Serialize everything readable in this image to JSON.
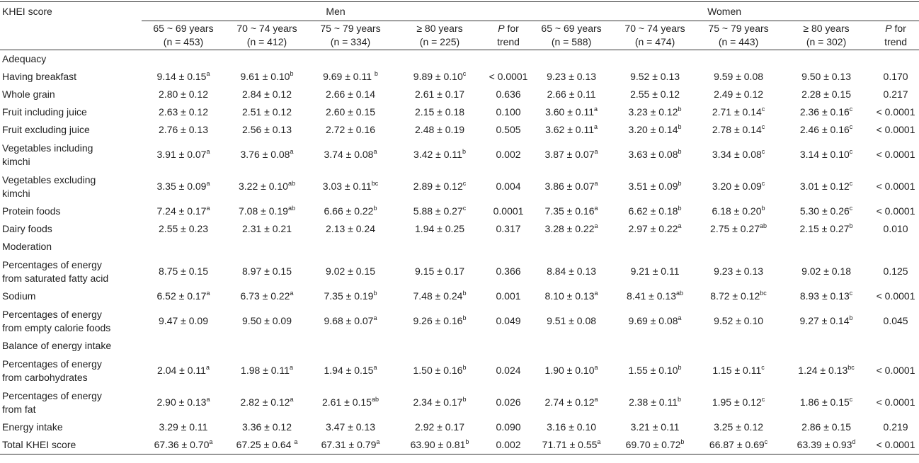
{
  "header": {
    "row_label": "KHEI score",
    "group_men": "Men",
    "group_women": "Women",
    "men_cols": [
      {
        "line1": "65 ~ 69 years",
        "line2": "(n = 453)"
      },
      {
        "line1": "70 ~ 74 years",
        "line2": "(n = 412)"
      },
      {
        "line1": "75 ~ 79 years",
        "line2": "(n = 334)"
      },
      {
        "line1": "≥ 80 years",
        "line2": "(n = 225)"
      }
    ],
    "women_cols": [
      {
        "line1": "65 ~ 69 years",
        "line2": "(n = 588)"
      },
      {
        "line1": "70 ~ 74 years",
        "line2": "(n = 474)"
      },
      {
        "line1": "75 ~ 79 years",
        "line2": "(n = 443)"
      },
      {
        "line1": "≥ 80 years",
        "line2": "(n = 302)"
      }
    ],
    "ptrend_p": "P",
    "ptrend_for": " for",
    "ptrend_trend": "trend"
  },
  "rows": [
    {
      "type": "section",
      "label": "Adequacy"
    },
    {
      "type": "data",
      "label": "Having breakfast",
      "cells": [
        {
          "v": "9.14 ± 0.15",
          "s": "a"
        },
        {
          "v": "9.61 ± 0.10",
          "s": "b"
        },
        {
          "v": "9.69 ± 0.11 ",
          "s": "b"
        },
        {
          "v": "9.89 ± 0.10",
          "s": "c"
        },
        {
          "v": "< 0.0001",
          "s": ""
        },
        {
          "v": "9.23 ± 0.13",
          "s": ""
        },
        {
          "v": "9.52 ± 0.13",
          "s": ""
        },
        {
          "v": "9.59 ± 0.08",
          "s": ""
        },
        {
          "v": "9.50 ± 0.13",
          "s": ""
        },
        {
          "v": "0.170",
          "s": ""
        }
      ]
    },
    {
      "type": "data",
      "label": "Whole grain",
      "cells": [
        {
          "v": "2.80 ± 0.12",
          "s": ""
        },
        {
          "v": "2.84 ± 0.12",
          "s": ""
        },
        {
          "v": "2.66 ± 0.14",
          "s": ""
        },
        {
          "v": "2.61 ± 0.17",
          "s": ""
        },
        {
          "v": "0.636",
          "s": ""
        },
        {
          "v": "2.66 ± 0.11",
          "s": ""
        },
        {
          "v": "2.55 ± 0.12",
          "s": ""
        },
        {
          "v": "2.49 ± 0.12",
          "s": ""
        },
        {
          "v": "2.28 ± 0.15",
          "s": ""
        },
        {
          "v": "0.217",
          "s": ""
        }
      ]
    },
    {
      "type": "data",
      "label": "Fruit including juice",
      "cells": [
        {
          "v": "2.63 ± 0.12",
          "s": ""
        },
        {
          "v": "2.51 ± 0.12",
          "s": ""
        },
        {
          "v": "2.60 ± 0.15",
          "s": ""
        },
        {
          "v": "2.15 ± 0.18",
          "s": ""
        },
        {
          "v": "0.100",
          "s": ""
        },
        {
          "v": "3.60 ± 0.11",
          "s": "a"
        },
        {
          "v": "3.23 ± 0.12",
          "s": "b"
        },
        {
          "v": "2.71 ± 0.14",
          "s": "c"
        },
        {
          "v": "2.36 ± 0.16",
          "s": "c"
        },
        {
          "v": "< 0.0001",
          "s": ""
        }
      ]
    },
    {
      "type": "data",
      "label": "Fruit excluding juice",
      "cells": [
        {
          "v": "2.76 ± 0.13",
          "s": ""
        },
        {
          "v": "2.56 ± 0.13",
          "s": ""
        },
        {
          "v": "2.72 ± 0.16",
          "s": ""
        },
        {
          "v": "2.48 ± 0.19",
          "s": ""
        },
        {
          "v": "0.505",
          "s": ""
        },
        {
          "v": "3.62 ± 0.11",
          "s": "a"
        },
        {
          "v": "3.20 ± 0.14",
          "s": "b"
        },
        {
          "v": "2.78 ± 0.14",
          "s": "c"
        },
        {
          "v": "2.46 ± 0.16",
          "s": "c"
        },
        {
          "v": "< 0.0001",
          "s": ""
        }
      ]
    },
    {
      "type": "data2",
      "label": "Vegetables including kimchi",
      "cells": [
        {
          "v": "3.91 ± 0.07",
          "s": "a"
        },
        {
          "v": "3.76 ± 0.08",
          "s": "a"
        },
        {
          "v": "3.74 ± 0.08",
          "s": "a"
        },
        {
          "v": "3.42 ± 0.11",
          "s": "b"
        },
        {
          "v": "0.002",
          "s": ""
        },
        {
          "v": "3.87 ± 0.07",
          "s": "a"
        },
        {
          "v": "3.63 ± 0.08",
          "s": "b"
        },
        {
          "v": "3.34 ± 0.08",
          "s": "c"
        },
        {
          "v": "3.14 ± 0.10",
          "s": "c"
        },
        {
          "v": "< 0.0001",
          "s": ""
        }
      ]
    },
    {
      "type": "data2",
      "label": "Vegetables excluding kimchi",
      "cells": [
        {
          "v": "3.35 ± 0.09",
          "s": "a"
        },
        {
          "v": "3.22 ± 0.10",
          "s": "ab"
        },
        {
          "v": "3.03 ± 0.11",
          "s": "bc"
        },
        {
          "v": "2.89 ± 0.12",
          "s": "c"
        },
        {
          "v": "0.004",
          "s": ""
        },
        {
          "v": "3.86 ± 0.07",
          "s": "a"
        },
        {
          "v": "3.51 ± 0.09",
          "s": "b"
        },
        {
          "v": "3.20 ± 0.09",
          "s": "c"
        },
        {
          "v": "3.01 ± 0.12",
          "s": "c"
        },
        {
          "v": "< 0.0001",
          "s": ""
        }
      ]
    },
    {
      "type": "data",
      "label": "Protein foods",
      "cells": [
        {
          "v": "7.24 ± 0.17",
          "s": "a"
        },
        {
          "v": "7.08 ± 0.19",
          "s": "ab"
        },
        {
          "v": "6.66 ± 0.22",
          "s": "b"
        },
        {
          "v": "5.88 ± 0.27",
          "s": "c"
        },
        {
          "v": "0.0001",
          "s": ""
        },
        {
          "v": "7.35 ± 0.16",
          "s": "a"
        },
        {
          "v": "6.62 ± 0.18",
          "s": "b"
        },
        {
          "v": "6.18 ± 0.20",
          "s": "b"
        },
        {
          "v": "5.30 ± 0.26",
          "s": "c"
        },
        {
          "v": "< 0.0001",
          "s": ""
        }
      ]
    },
    {
      "type": "data",
      "label": "Dairy foods",
      "cells": [
        {
          "v": "2.55 ± 0.23",
          "s": ""
        },
        {
          "v": "2.31 ± 0.21",
          "s": ""
        },
        {
          "v": "2.13 ± 0.24",
          "s": ""
        },
        {
          "v": "1.94 ± 0.25",
          "s": ""
        },
        {
          "v": "0.317",
          "s": ""
        },
        {
          "v": "3.28 ± 0.22",
          "s": "a"
        },
        {
          "v": "2.97 ± 0.22",
          "s": "a"
        },
        {
          "v": "2.75 ± 0.27",
          "s": "ab"
        },
        {
          "v": "2.15 ± 0.27",
          "s": "b"
        },
        {
          "v": "0.010",
          "s": ""
        }
      ]
    },
    {
      "type": "section",
      "label": "Moderation"
    },
    {
      "type": "data2",
      "label": "Percentages of energy from saturated fatty acid",
      "cells": [
        {
          "v": "8.75 ± 0.15",
          "s": ""
        },
        {
          "v": "8.97 ± 0.15",
          "s": ""
        },
        {
          "v": "9.02 ± 0.15",
          "s": ""
        },
        {
          "v": "9.15 ± 0.17",
          "s": ""
        },
        {
          "v": "0.366",
          "s": ""
        },
        {
          "v": "8.84 ± 0.13",
          "s": ""
        },
        {
          "v": "9.21 ± 0.11",
          "s": ""
        },
        {
          "v": "9.23 ± 0.13",
          "s": ""
        },
        {
          "v": "9.02 ± 0.18",
          "s": ""
        },
        {
          "v": "0.125",
          "s": ""
        }
      ]
    },
    {
      "type": "data",
      "label": "Sodium",
      "cells": [
        {
          "v": "6.52 ± 0.17",
          "s": "a"
        },
        {
          "v": "6.73 ± 0.22",
          "s": "a"
        },
        {
          "v": "7.35 ± 0.19",
          "s": "b"
        },
        {
          "v": "7.48 ± 0.24",
          "s": "b"
        },
        {
          "v": "0.001",
          "s": ""
        },
        {
          "v": "8.10 ± 0.13",
          "s": "a"
        },
        {
          "v": "8.41 ± 0.13",
          "s": "ab"
        },
        {
          "v": "8.72 ± 0.12",
          "s": "bc"
        },
        {
          "v": "8.93 ± 0.13",
          "s": "c"
        },
        {
          "v": "< 0.0001",
          "s": ""
        }
      ]
    },
    {
      "type": "data2",
      "label": "Percentages of energy from empty calorie foods",
      "cells": [
        {
          "v": "9.47 ± 0.09",
          "s": ""
        },
        {
          "v": "9.50 ± 0.09",
          "s": ""
        },
        {
          "v": "9.68 ± 0.07",
          "s": "a"
        },
        {
          "v": "9.26 ± 0.16",
          "s": "b"
        },
        {
          "v": "0.049",
          "s": ""
        },
        {
          "v": "9.51 ± 0.08",
          "s": ""
        },
        {
          "v": "9.69 ± 0.08",
          "s": "a"
        },
        {
          "v": "9.52 ± 0.10",
          "s": ""
        },
        {
          "v": "9.27 ± 0.14",
          "s": "b"
        },
        {
          "v": "0.045",
          "s": ""
        }
      ]
    },
    {
      "type": "section",
      "label": "Balance of energy intake"
    },
    {
      "type": "data2",
      "label": "Percentages of energy from carbohydrates",
      "cells": [
        {
          "v": "2.04 ± 0.11",
          "s": "a"
        },
        {
          "v": "1.98 ± 0.11",
          "s": "a"
        },
        {
          "v": "1.94 ± 0.15",
          "s": "a"
        },
        {
          "v": "1.50 ± 0.16",
          "s": "b"
        },
        {
          "v": "0.024",
          "s": ""
        },
        {
          "v": "1.90 ± 0.10",
          "s": "a"
        },
        {
          "v": "1.55 ± 0.10",
          "s": "b"
        },
        {
          "v": "1.15 ± 0.11",
          "s": "c"
        },
        {
          "v": "1.24 ± 0.13",
          "s": "bc"
        },
        {
          "v": "< 0.0001",
          "s": ""
        }
      ]
    },
    {
      "type": "data2",
      "label": "Percentages of energy from fat",
      "cells": [
        {
          "v": "2.90 ± 0.13",
          "s": "a"
        },
        {
          "v": "2.82 ± 0.12",
          "s": "a"
        },
        {
          "v": "2.61 ± 0.15",
          "s": "ab"
        },
        {
          "v": "2.34 ± 0.17",
          "s": "b"
        },
        {
          "v": "0.026",
          "s": ""
        },
        {
          "v": "2.74 ± 0.12",
          "s": "a"
        },
        {
          "v": "2.38 ± 0.11",
          "s": "b"
        },
        {
          "v": "1.95 ± 0.12",
          "s": "c"
        },
        {
          "v": "1.86 ± 0.15",
          "s": "c"
        },
        {
          "v": "< 0.0001",
          "s": ""
        }
      ]
    },
    {
      "type": "data",
      "label": "Energy intake",
      "cells": [
        {
          "v": "3.29 ± 0.11",
          "s": ""
        },
        {
          "v": "3.36 ± 0.12",
          "s": ""
        },
        {
          "v": "3.47 ± 0.13",
          "s": ""
        },
        {
          "v": "2.92 ± 0.17",
          "s": ""
        },
        {
          "v": "0.090",
          "s": ""
        },
        {
          "v": "3.16 ± 0.10",
          "s": ""
        },
        {
          "v": "3.21 ± 0.11",
          "s": ""
        },
        {
          "v": "3.25 ± 0.12",
          "s": ""
        },
        {
          "v": "2.86 ± 0.15",
          "s": ""
        },
        {
          "v": "0.219",
          "s": ""
        }
      ]
    },
    {
      "type": "data",
      "label": "Total KHEI score",
      "cells": [
        {
          "v": "67.36 ± 0.70",
          "s": "a"
        },
        {
          "v": "67.25 ± 0.64 ",
          "s": "a"
        },
        {
          "v": "67.31 ± 0.79",
          "s": "a"
        },
        {
          "v": "63.90 ± 0.81",
          "s": "b"
        },
        {
          "v": "0.002",
          "s": ""
        },
        {
          "v": "71.71 ± 0.55",
          "s": "a"
        },
        {
          "v": "69.70 ± 0.72",
          "s": "b"
        },
        {
          "v": "66.87 ± 0.69",
          "s": "c"
        },
        {
          "v": "63.39 ± 0.93",
          "s": "d"
        },
        {
          "v": "< 0.0001",
          "s": ""
        }
      ]
    }
  ]
}
